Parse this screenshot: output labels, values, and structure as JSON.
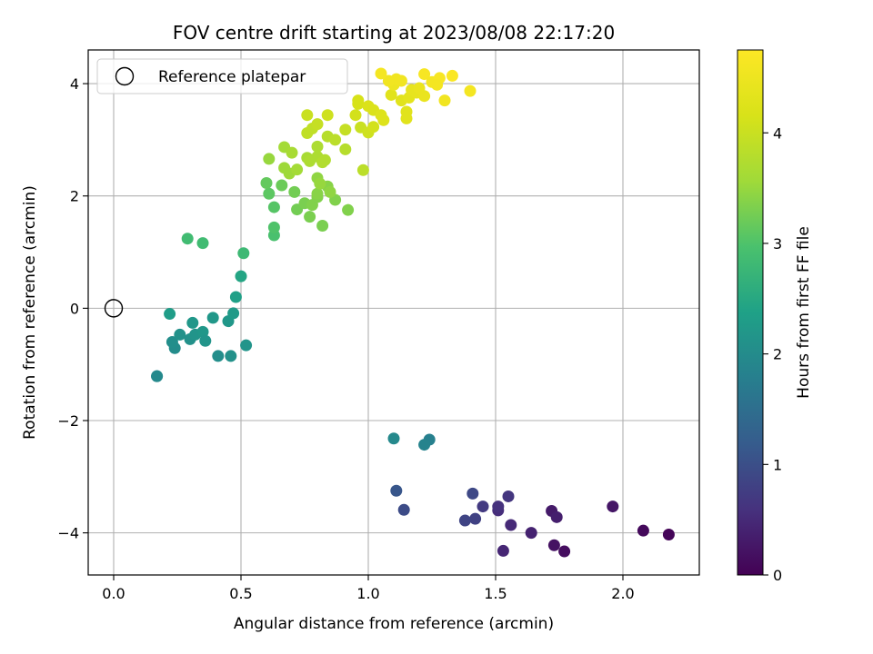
{
  "chart_data": {
    "type": "scatter",
    "title": "FOV centre drift starting at 2023/08/08 22:17:20",
    "xlabel": "Angular distance from reference (arcmin)",
    "ylabel": "Rotation from reference (arcmin)",
    "colorbar_label": "Hours from first FF file",
    "xlim": [
      -0.1,
      2.3
    ],
    "ylim": [
      -4.75,
      4.6
    ],
    "clim": [
      0,
      4.75
    ],
    "colormap": "viridis",
    "grid": true,
    "legend_position": "top-left",
    "xticks": [
      0.0,
      0.5,
      1.0,
      1.5,
      2.0
    ],
    "xtick_labels": [
      "0.0",
      "0.5",
      "1.0",
      "1.5",
      "2.0"
    ],
    "yticks": [
      -4,
      -2,
      0,
      2,
      4
    ],
    "ytick_labels": [
      "−4",
      "−2",
      "0",
      "2",
      "4"
    ],
    "cticks": [
      0,
      1,
      2,
      3,
      4
    ],
    "ctick_labels": [
      "0",
      "1",
      "2",
      "3",
      "4"
    ],
    "reference": {
      "label": "Reference platepar",
      "x": 0.0,
      "y": 0.0
    },
    "points": [
      [
        2.18,
        -4.03,
        0.05
      ],
      [
        2.08,
        -3.96,
        0.1
      ],
      [
        1.77,
        -4.33,
        0.15
      ],
      [
        1.73,
        -4.22,
        0.2
      ],
      [
        1.96,
        -3.53,
        0.25
      ],
      [
        1.72,
        -3.61,
        0.3
      ],
      [
        1.74,
        -3.72,
        0.35
      ],
      [
        1.64,
        -4.0,
        0.4
      ],
      [
        1.53,
        -4.32,
        0.45
      ],
      [
        1.56,
        -3.86,
        0.5
      ],
      [
        1.51,
        -3.6,
        0.55
      ],
      [
        1.51,
        -3.53,
        0.6
      ],
      [
        1.55,
        -3.35,
        0.65
      ],
      [
        1.45,
        -3.53,
        0.7
      ],
      [
        1.42,
        -3.75,
        0.8
      ],
      [
        1.38,
        -3.78,
        0.85
      ],
      [
        1.41,
        -3.3,
        0.9
      ],
      [
        1.14,
        -3.59,
        0.95
      ],
      [
        1.11,
        -3.25,
        1.1
      ],
      [
        1.24,
        -2.34,
        1.8
      ],
      [
        1.22,
        -2.43,
        1.85
      ],
      [
        1.1,
        -2.32,
        1.95
      ],
      [
        0.17,
        -1.21,
        1.95
      ],
      [
        0.17,
        -1.21,
        1.95
      ],
      [
        0.24,
        -0.71,
        2.0
      ],
      [
        0.23,
        -0.6,
        2.05
      ],
      [
        0.26,
        -0.47,
        2.1
      ],
      [
        0.3,
        -0.55,
        2.1
      ],
      [
        0.32,
        -0.47,
        2.15
      ],
      [
        0.35,
        -0.42,
        2.2
      ],
      [
        0.36,
        -0.58,
        2.15
      ],
      [
        0.31,
        -0.26,
        2.2
      ],
      [
        0.41,
        -0.85,
        2.05
      ],
      [
        0.46,
        -0.85,
        2.1
      ],
      [
        0.39,
        -0.17,
        2.2
      ],
      [
        0.45,
        -0.23,
        2.2
      ],
      [
        0.47,
        -0.09,
        2.25
      ],
      [
        0.52,
        -0.66,
        2.15
      ],
      [
        0.48,
        0.2,
        2.35
      ],
      [
        0.5,
        0.57,
        2.45
      ],
      [
        0.22,
        -0.1,
        2.3
      ],
      [
        0.51,
        0.98,
        2.8
      ],
      [
        0.29,
        1.24,
        2.85
      ],
      [
        0.35,
        1.16,
        2.85
      ],
      [
        0.63,
        1.3,
        2.95
      ],
      [
        0.63,
        1.44,
        3.0
      ],
      [
        0.63,
        1.8,
        3.05
      ],
      [
        0.61,
        2.04,
        3.1
      ],
      [
        0.6,
        2.23,
        3.15
      ],
      [
        0.66,
        2.19,
        3.2
      ],
      [
        0.71,
        2.07,
        3.25
      ],
      [
        0.72,
        1.76,
        3.25
      ],
      [
        0.75,
        1.87,
        3.3
      ],
      [
        0.77,
        1.63,
        3.3
      ],
      [
        0.82,
        1.47,
        3.3
      ],
      [
        0.78,
        1.84,
        3.35
      ],
      [
        0.8,
        1.98,
        3.35
      ],
      [
        0.8,
        2.04,
        3.4
      ],
      [
        0.84,
        2.17,
        3.4
      ],
      [
        0.87,
        1.93,
        3.35
      ],
      [
        0.85,
        2.07,
        3.45
      ],
      [
        0.8,
        2.32,
        3.45
      ],
      [
        0.81,
        2.22,
        3.5
      ],
      [
        0.92,
        1.75,
        3.35
      ],
      [
        0.61,
        2.66,
        3.5
      ],
      [
        0.67,
        2.5,
        3.55
      ],
      [
        0.69,
        2.4,
        3.55
      ],
      [
        0.72,
        2.47,
        3.6
      ],
      [
        0.67,
        2.87,
        3.6
      ],
      [
        0.7,
        2.77,
        3.65
      ],
      [
        0.76,
        2.68,
        3.65
      ],
      [
        0.77,
        2.62,
        3.7
      ],
      [
        0.8,
        2.7,
        3.7
      ],
      [
        0.8,
        2.88,
        3.7
      ],
      [
        0.82,
        2.6,
        3.75
      ],
      [
        0.83,
        2.64,
        3.75
      ],
      [
        0.84,
        3.06,
        3.8
      ],
      [
        0.87,
        3.0,
        3.85
      ],
      [
        0.91,
        2.83,
        3.8
      ],
      [
        0.98,
        2.46,
        3.85
      ],
      [
        0.76,
        3.12,
        3.9
      ],
      [
        0.78,
        3.2,
        3.9
      ],
      [
        0.8,
        3.28,
        3.95
      ],
      [
        0.76,
        3.44,
        4.0
      ],
      [
        0.84,
        3.44,
        4.05
      ],
      [
        0.91,
        3.18,
        3.95
      ],
      [
        0.95,
        3.44,
        4.1
      ],
      [
        0.97,
        3.22,
        4.0
      ],
      [
        1.0,
        3.13,
        4.05
      ],
      [
        1.02,
        3.23,
        4.1
      ],
      [
        0.96,
        3.64,
        4.15
      ],
      [
        0.96,
        3.7,
        4.15
      ],
      [
        1.0,
        3.6,
        4.2
      ],
      [
        1.02,
        3.53,
        4.2
      ],
      [
        1.05,
        3.44,
        4.25
      ],
      [
        1.06,
        3.35,
        4.25
      ],
      [
        1.09,
        3.8,
        4.3
      ],
      [
        1.13,
        3.7,
        4.3
      ],
      [
        1.15,
        3.5,
        4.3
      ],
      [
        1.15,
        3.38,
        4.3
      ],
      [
        1.16,
        3.75,
        4.35
      ],
      [
        1.17,
        3.89,
        4.4
      ],
      [
        1.19,
        3.84,
        4.4
      ],
      [
        1.22,
        3.78,
        4.45
      ],
      [
        1.2,
        3.92,
        4.45
      ],
      [
        1.1,
        3.98,
        4.5
      ],
      [
        1.11,
        4.08,
        4.55
      ],
      [
        1.13,
        4.05,
        4.55
      ],
      [
        1.08,
        4.05,
        4.55
      ],
      [
        1.05,
        4.18,
        4.6
      ],
      [
        1.22,
        4.17,
        4.65
      ],
      [
        1.25,
        4.03,
        4.6
      ],
      [
        1.28,
        4.1,
        4.65
      ],
      [
        1.27,
        3.98,
        4.6
      ],
      [
        1.3,
        3.7,
        4.55
      ],
      [
        1.33,
        4.14,
        4.7
      ],
      [
        1.4,
        3.87,
        4.6
      ]
    ]
  }
}
